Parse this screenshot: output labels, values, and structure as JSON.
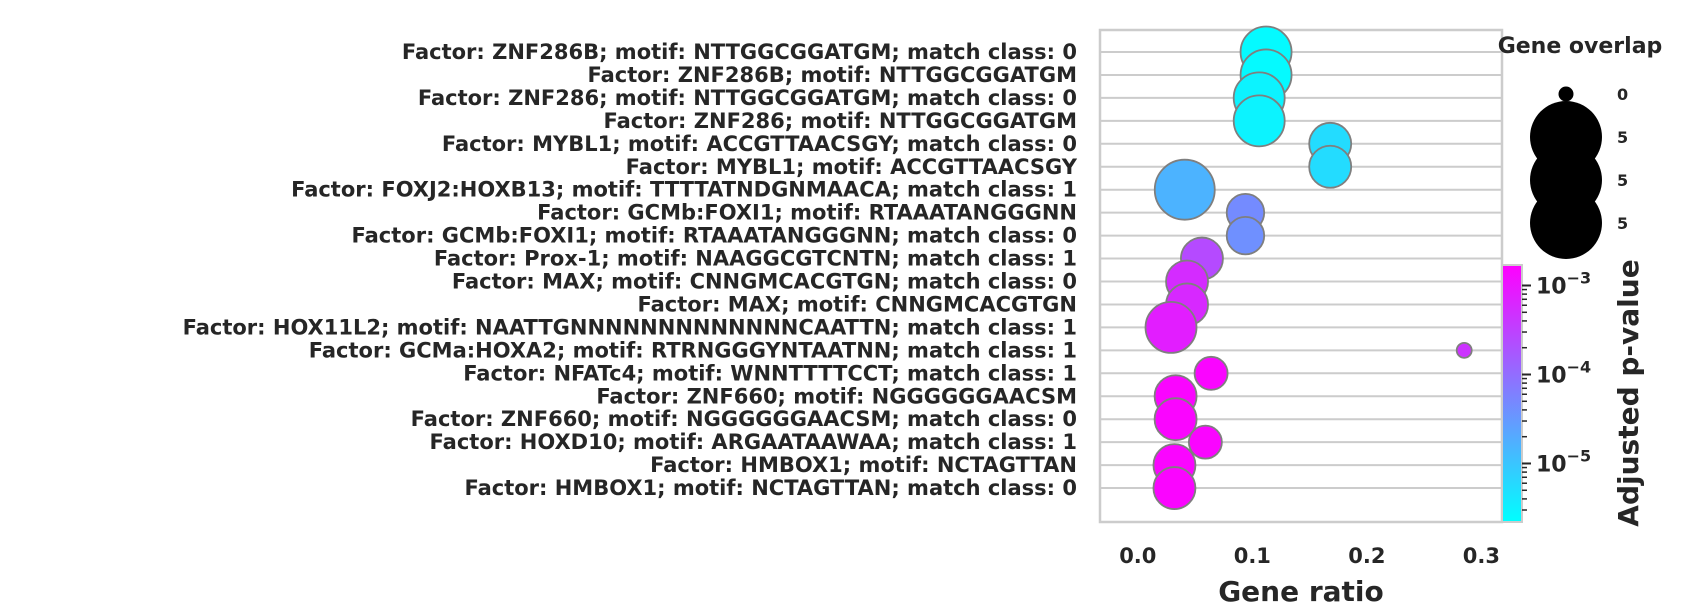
{
  "chart_data": {
    "type": "scatter",
    "xlabel": "Gene ratio",
    "xlim": [
      -0.033,
      0.318
    ],
    "x_ticks": [
      "0.0",
      "0.1",
      "0.2",
      "0.3"
    ],
    "x_tick_values": [
      0.0,
      0.1,
      0.2,
      0.3
    ],
    "grid": "horizontal",
    "categories": [
      "Factor: ZNF286B; motif: NTTGGCGGATGM; match class: 0",
      "Factor: ZNF286B; motif: NTTGGCGGATGM",
      "Factor: ZNF286; motif: NTTGGCGGATGM; match class: 0",
      "Factor: ZNF286; motif: NTTGGCGGATGM",
      "Factor: MYBL1; motif: ACCGTTAACSGY; match class: 0",
      "Factor: MYBL1; motif: ACCGTTAACSGY",
      "Factor: FOXJ2:HOXB13; motif: TTTTATNDGNMAACA; match class: 1",
      "Factor: GCMb:FOXI1; motif: RTAAATANGGGNN",
      "Factor: GCMb:FOXI1; motif: RTAAATANGGGNN; match class: 0",
      "Factor: Prox-1; motif: NAAGGCGTCNTN; match class: 1",
      "Factor: MAX; motif: CNNGMCACGTGN; match class: 0",
      "Factor: MAX; motif: CNNGMCACGTGN",
      "Factor: HOX11L2; motif: NAATTGNNNNNNNNNNNNNCAATTN; match class: 1",
      "Factor: GCMa:HOXA2; motif: RTRNGGGYNTAATNN; match class: 1",
      "Factor: NFATc4; motif: WNNTTTTCCT; match class: 1",
      "Factor: ZNF660; motif: NGGGGGGAACSM",
      "Factor: ZNF660; motif: NGGGGGGAACSM; match class: 0",
      "Factor: HOXD10; motif: ARGAATAAWAA; match class: 1",
      "Factor: HMBOX1; motif: NCTAGTTAN",
      "Factor: HMBOX1; motif: NCTAGTTAN; match class: 0"
    ],
    "x": [
      0.112,
      0.112,
      0.106,
      0.106,
      0.168,
      0.168,
      0.041,
      0.094,
      0.094,
      0.056,
      0.043,
      0.043,
      0.029,
      0.285,
      0.064,
      0.033,
      0.033,
      0.059,
      0.032,
      0.032
    ],
    "size": [
      5,
      5,
      5,
      5,
      4,
      4,
      6,
      3.5,
      3.5,
      4,
      4,
      4,
      5,
      1,
      3,
      4,
      4,
      3,
      4,
      4
    ],
    "p_value": [
      2.5e-06,
      2.5e-06,
      3e-06,
      3e-06,
      5.5e-06,
      5.5e-06,
      1.6e-05,
      4.5e-05,
      4e-05,
      0.00025,
      0.00055,
      0.0006,
      0.0008,
      0.00045,
      0.0015,
      0.0015,
      0.0015,
      0.0015,
      0.0015,
      0.0015
    ],
    "size_legend": {
      "title": "Gene overlap",
      "entries": [
        "0",
        "5",
        "5",
        "5"
      ],
      "sizes": [
        1,
        5,
        5,
        5
      ]
    },
    "colorbar": {
      "label": "Adjusted p-value",
      "scale": "log",
      "range": [
        2.2e-06,
        0.0017
      ],
      "ticks": [
        0.001,
        0.0001,
        1e-05
      ],
      "tick_labels": [
        "10",
        "10",
        "10"
      ],
      "tick_exponents": [
        "−3",
        "−4",
        "−5"
      ],
      "colormap": "cool",
      "colors": {
        "low": "#00ffff",
        "high": "#ff00ff"
      }
    }
  }
}
